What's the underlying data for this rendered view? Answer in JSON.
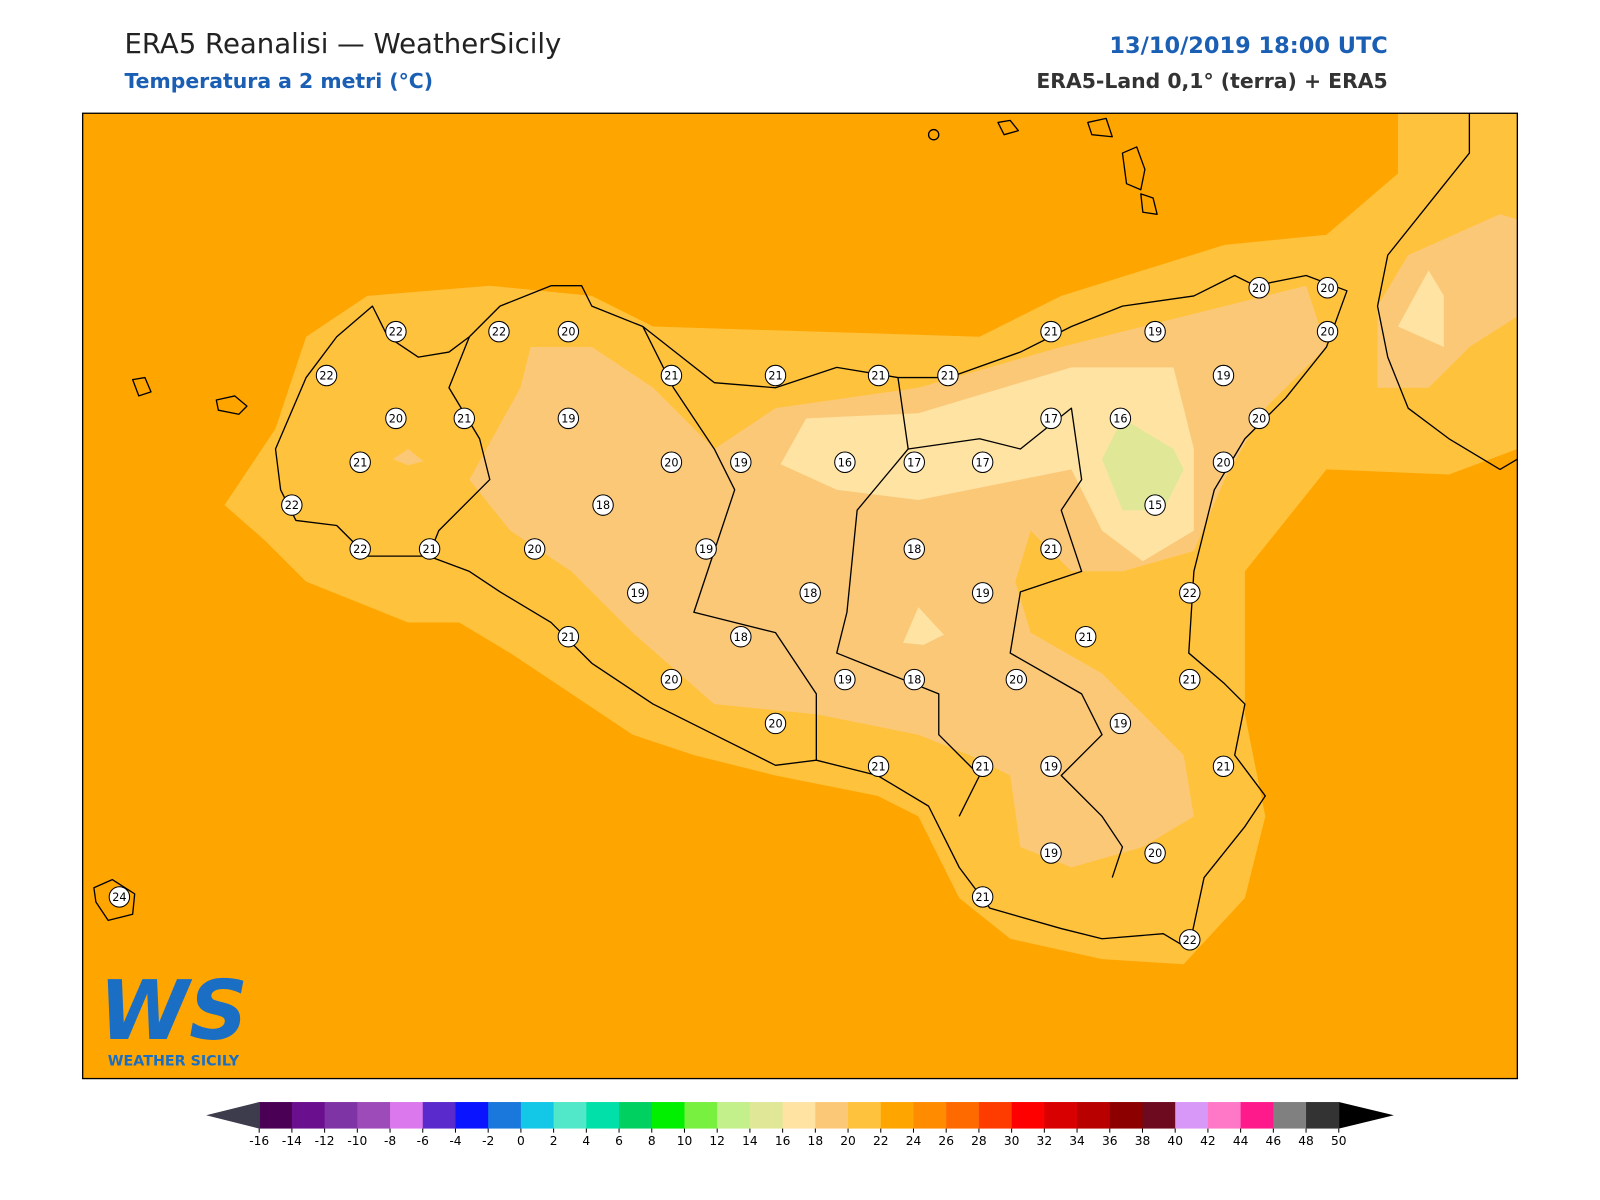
{
  "header": {
    "title": "ERA5 Reanalisi — WeatherSicily",
    "subtitle": "Temperatura a 2 metri (°C)",
    "datetime": "13/10/2019 18:00 UTC",
    "source": "ERA5-Land 0,1° (terra) + ERA5"
  },
  "stations": [
    22,
    22,
    20,
    22,
    20,
    21,
    19,
    21,
    22,
    22,
    21,
    20,
    18,
    21,
    21,
    21,
    21,
    21,
    19,
    20,
    20,
    20,
    19,
    17,
    16,
    20,
    20,
    19,
    16,
    17,
    17,
    20,
    15,
    19,
    18,
    21,
    19,
    18,
    19,
    22,
    21,
    18,
    21,
    20,
    19,
    18,
    20,
    21,
    19,
    20,
    21,
    21,
    19,
    21,
    19,
    20,
    21,
    22,
    24
  ],
  "colorbar": {
    "ticks": [
      -16,
      -14,
      -12,
      -10,
      -8,
      -6,
      -4,
      -2,
      0,
      2,
      4,
      6,
      8,
      10,
      12,
      14,
      16,
      18,
      20,
      22,
      24,
      26,
      28,
      30,
      32,
      34,
      36,
      38,
      40,
      42,
      44,
      46,
      48,
      50
    ],
    "colors": [
      "#4a0055",
      "#6a0f8e",
      "#7e34a5",
      "#9c4bb8",
      "#dc78ee",
      "#5a2acd",
      "#0a14ff",
      "#1a78dc",
      "#12c8e6",
      "#50e8c8",
      "#00e0a8",
      "#00d060",
      "#00f000",
      "#78f040",
      "#c4f08c",
      "#e0e898",
      "#fee3a2",
      "#fbc878",
      "#ffc23c",
      "#ffa500",
      "#ff8c00",
      "#ff6a00",
      "#ff3c00",
      "#ff0000",
      "#d80000",
      "#b80000",
      "#8c0000",
      "#6e0a20",
      "#d898f8",
      "#ff78c8",
      "#ff1a8c",
      "#808080",
      "#333333"
    ],
    "under": "#3c3c4c",
    "over": "#000000"
  },
  "logo": {
    "text": "WS",
    "caption": "WEATHER SICILY"
  }
}
